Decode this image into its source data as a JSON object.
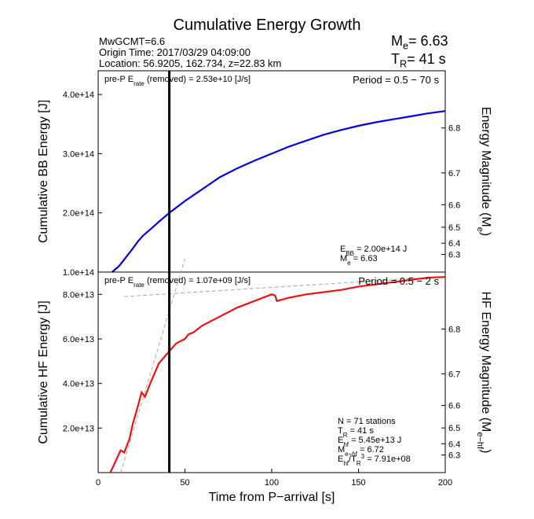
{
  "title": "Cumulative Energy Growth",
  "info": {
    "line1": "MwGCMT=6.6",
    "line2": "Origin Time: 2017/03/29 04:09:00",
    "line3": "Location: 56.9205, 162.734, z=22.83 km"
  },
  "summary": {
    "me_label": "M",
    "me_sub": "e",
    "me_value": "= 6.63",
    "tr_label": "T",
    "tr_sub": "R",
    "tr_value": "= 41 s"
  },
  "colors": {
    "bb_curve": "#0000dd",
    "hf_curve": "#ee1111",
    "marker": "#000000",
    "guide": "#aaaaaa"
  },
  "chart_data": [
    {
      "type": "line",
      "title": "Cumulative Energy Growth",
      "xlabel": "Time from P−arrival [s]",
      "ylabel": "Cumulative BB Energy [J]",
      "ylabel_right": "Energy Magnitude (M",
      "ylabel_right_sub": "e",
      "ylabel_right_end": ")",
      "xlim": [
        0,
        200
      ],
      "ylim": [
        100000000000000.0,
        440000000000000.0
      ],
      "x_ticks": [],
      "y_ticks": [
        100000000000000.0,
        200000000000000.0,
        300000000000000.0,
        400000000000000.0
      ],
      "y_tick_labels": [
        "1.0e+14",
        "2.0e+14",
        "3.0e+14",
        "4.0e+14"
      ],
      "right_ticks": [
        "6.3",
        "6.4",
        "6.5",
        "6.6",
        "6.7",
        "6.8"
      ],
      "right_tick_values": [
        6.3,
        6.4,
        6.5,
        6.6,
        6.7,
        6.8
      ],
      "top_left_label": {
        "pre": "pre-P E",
        "sub": "rate",
        "post": " (removed) = 2.53e+10 [J/s]"
      },
      "period_label": "Period = 0.5 − 70 s",
      "notes": [
        {
          "pre": "E",
          "sub": "BB",
          "post": " = 2.00e+14 J"
        },
        {
          "pre": "M",
          "sub": "e",
          "post": " = 6.63"
        }
      ],
      "marker_x": 41,
      "series": [
        {
          "x": [
            8,
            12,
            16,
            20,
            23,
            26,
            30,
            35,
            41,
            50,
            60,
            70,
            80,
            90,
            100,
            110,
            120,
            130,
            140,
            150,
            160,
            170,
            180,
            190,
            200
          ],
          "y": [
            100000000000000.0,
            110000000000000.0,
            125000000000000.0,
            140000000000000.0,
            152000000000000.0,
            162000000000000.0,
            172000000000000.0,
            185000000000000.0,
            200000000000000.0,
            220000000000000.0,
            240000000000000.0,
            260000000000000.0,
            275000000000000.0,
            288000000000000.0,
            300000000000000.0,
            312000000000000.0,
            322000000000000.0,
            332000000000000.0,
            340000000000000.0,
            347000000000000.0,
            353000000000000.0,
            358000000000000.0,
            363000000000000.0,
            368000000000000.0,
            372000000000000.0
          ]
        }
      ]
    },
    {
      "type": "line",
      "xlabel": "Time from P−arrival [s]",
      "ylabel": "Cumulative HF Energy [J]",
      "ylabel_right": "HF Energy Magnitude (M",
      "ylabel_right_sub": "e−hf",
      "ylabel_right_end": ")",
      "xlim": [
        0,
        200
      ],
      "ylim": [
        0,
        90000000000000.0
      ],
      "x_ticks": [
        0,
        50,
        100,
        150,
        200
      ],
      "x_tick_labels": [
        "0",
        "50",
        "100",
        "150",
        "200"
      ],
      "y_ticks": [
        20000000000000.0,
        40000000000000.0,
        60000000000000.0,
        80000000000000.0
      ],
      "y_tick_labels": [
        "2.0e+13",
        "4.0e+13",
        "6.0e+13",
        "8.0e+13"
      ],
      "right_ticks": [
        "6.3",
        "6.4",
        "6.5",
        "6.6",
        "6.7",
        "6.8"
      ],
      "right_tick_values": [
        6.3,
        6.4,
        6.5,
        6.6,
        6.7,
        6.8
      ],
      "top_left_label": {
        "pre": "pre-P E",
        "sub": "rate",
        "post": " (removed) = 1.07e+09 [J/s]"
      },
      "period_label": "Period = 0.5 − 2 s",
      "notes": [
        {
          "pre": "N = 71 stations",
          "sub": "",
          "post": ""
        },
        {
          "pre": "T",
          "sub": "R",
          "post": " = 41  s"
        },
        {
          "pre": "E",
          "sub": "hf",
          "post": " = 5.45e+13 J"
        },
        {
          "pre": "M",
          "sub": "e−hf",
          "post": " = 6.72"
        },
        {
          "pre": "E",
          "sub": "hf",
          "post": "/T",
          "sub2": "R",
          "sup": "3",
          "post2": " =  7.91e+08"
        }
      ],
      "marker_x": 41,
      "series": [
        {
          "x": [
            7,
            10,
            13,
            15,
            18,
            20,
            23,
            25,
            27,
            30,
            35,
            41,
            45,
            50,
            52,
            55,
            60,
            70,
            80,
            90,
            100,
            102,
            103,
            110,
            120,
            130,
            140,
            150,
            160,
            170,
            180,
            190,
            200
          ],
          "y": [
            0,
            5000000000000.0,
            10000000000000.0,
            9000000000000.0,
            15000000000000.0,
            22000000000000.0,
            30000000000000.0,
            36000000000000.0,
            34000000000000.0,
            40000000000000.0,
            49000000000000.0,
            54500000000000.0,
            58000000000000.0,
            60000000000000.0,
            62000000000000.0,
            63000000000000.0,
            66000000000000.0,
            70000000000000.0,
            74000000000000.0,
            77000000000000.0,
            80000000000000.0,
            79500000000000.0,
            77000000000000.0,
            78500000000000.0,
            80000000000000.0,
            81000000000000.0,
            82000000000000.0,
            83500000000000.0,
            84500000000000.0,
            85500000000000.0,
            86500000000000.0,
            87500000000000.0,
            87800000000000.0
          ]
        }
      ],
      "guide_lines": [
        {
          "x": [
            15,
            200
          ],
          "y": [
            79000000000000.0,
            88000000000000.0
          ]
        },
        {
          "x": [
            13,
            50
          ],
          "y": [
            0,
            96000000000000.0
          ]
        }
      ]
    }
  ]
}
